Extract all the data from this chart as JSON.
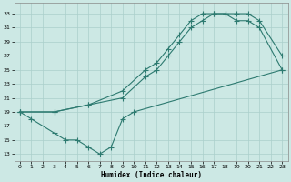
{
  "xlabel": "Humidex (Indice chaleur)",
  "bg_color": "#cce8e4",
  "grid_color": "#aacfcb",
  "line_color": "#2d7a70",
  "xlim": [
    -0.5,
    23.5
  ],
  "ylim": [
    12,
    34.5
  ],
  "xticks": [
    0,
    1,
    2,
    3,
    4,
    5,
    6,
    7,
    8,
    9,
    10,
    11,
    12,
    13,
    14,
    15,
    16,
    17,
    18,
    19,
    20,
    21,
    22,
    23
  ],
  "yticks": [
    13,
    15,
    17,
    19,
    21,
    23,
    25,
    27,
    29,
    31,
    33
  ],
  "line1_x": [
    0,
    3,
    6,
    9,
    11,
    12,
    13,
    14,
    15,
    16,
    17,
    18,
    19,
    20,
    21,
    23
  ],
  "line1_y": [
    19,
    19,
    20,
    22,
    25,
    26,
    28,
    30,
    32,
    33,
    33,
    33,
    33,
    33,
    32,
    27
  ],
  "line2_x": [
    0,
    3,
    6,
    9,
    11,
    12,
    13,
    14,
    15,
    16,
    17,
    18,
    19,
    20,
    21,
    23
  ],
  "line2_y": [
    19,
    19,
    20,
    21,
    24,
    25,
    27,
    29,
    31,
    32,
    33,
    33,
    32,
    32,
    31,
    25
  ],
  "line3_x": [
    0,
    1,
    3,
    4,
    5,
    6,
    7,
    8,
    9,
    10,
    23
  ],
  "line3_y": [
    19,
    18,
    16,
    15,
    15,
    14,
    13,
    14,
    18,
    19,
    25
  ]
}
